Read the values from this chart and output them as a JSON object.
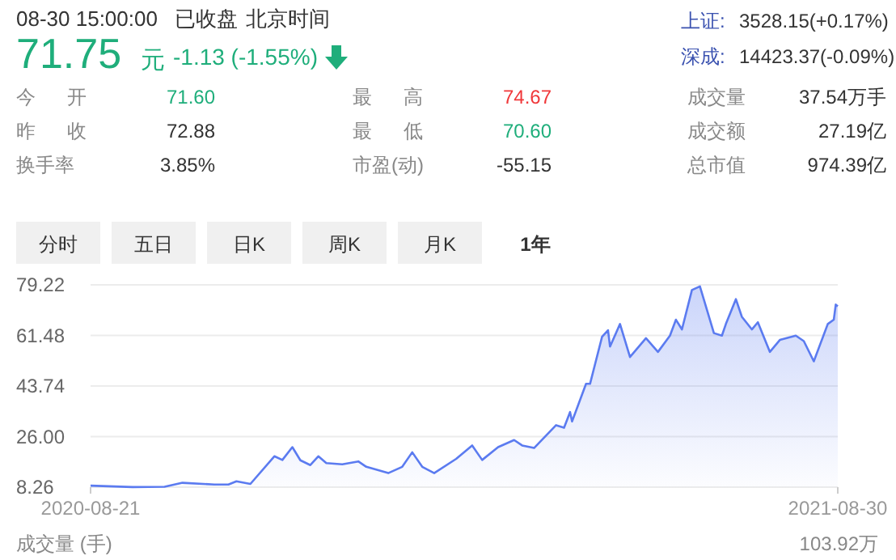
{
  "chart_data": [
    {
      "type": "other",
      "annotations": [
        "08-30 15:00:00",
        "已收盘",
        "北京时间",
        "71.75",
        "元",
        "-1.13 (-1.55%)",
        "上证:",
        "3528.15(+0.17%)",
        "深成:",
        "14423.37(-0.09%)",
        "今 开",
        "71.60",
        "最 高",
        "74.67",
        "成交量",
        "37.54万手",
        "昨 收",
        "72.88",
        "最 低",
        "70.60",
        "成交额",
        "27.19亿",
        "换手率",
        "3.85%",
        "市盈(动)",
        "-55.15",
        "总市值",
        "974.39亿",
        "分时",
        "五日",
        "日K",
        "周K",
        "月K",
        "1年"
      ]
    },
    {
      "type": "area",
      "x": [
        "2020-08-21",
        "2020-09-11",
        "2020-09-27",
        "2020-10-06",
        "2020-10-22",
        "2020-10-29",
        "2020-11-02",
        "2020-11-09",
        "2020-11-21",
        "2020-11-25",
        "2020-11-30",
        "2020-12-04",
        "2020-12-09",
        "2020-12-13",
        "2020-12-17",
        "2020-12-25",
        "2021-01-02",
        "2021-01-06",
        "2021-01-17",
        "2021-01-24",
        "2021-01-29",
        "2021-02-03",
        "2021-02-09",
        "2021-02-20",
        "2021-02-28",
        "2021-03-05",
        "2021-03-13",
        "2021-03-21",
        "2021-03-25",
        "2021-03-31",
        "2021-04-11",
        "2021-04-15",
        "2021-04-18",
        "2021-04-19",
        "2021-04-26",
        "2021-04-28",
        "2021-05-04",
        "2021-05-07",
        "2021-05-08",
        "2021-05-13",
        "2021-05-18",
        "2021-05-26",
        "2021-06-01",
        "2021-06-07",
        "2021-06-10",
        "2021-06-13",
        "2021-06-18",
        "2021-06-22",
        "2021-06-29",
        "2021-07-03",
        "2021-07-05",
        "2021-07-10",
        "2021-07-13",
        "2021-07-18",
        "2021-07-21",
        "2021-07-27",
        "2021-08-01",
        "2021-08-09",
        "2021-08-13",
        "2021-08-18",
        "2021-08-25",
        "2021-08-28",
        "2021-08-29",
        "2021-08-30"
      ],
      "series": [
        {
          "color": "#5b7bf0",
          "values": [
            8.8,
            8.3,
            8.4,
            9.8,
            9.2,
            9.2,
            10.3,
            9.4,
            19.1,
            17.8,
            22.3,
            17.7,
            16.0,
            19.1,
            16.7,
            16.3,
            17.3,
            15.4,
            13.2,
            15.4,
            20.5,
            15.4,
            13.2,
            18.2,
            22.9,
            17.8,
            22.3,
            24.8,
            22.9,
            22.0,
            30.0,
            29.1,
            34.6,
            31.3,
            44.5,
            44.5,
            61.0,
            63.3,
            57.6,
            65.5,
            53.9,
            60.5,
            55.7,
            61.4,
            67.0,
            63.6,
            77.4,
            78.7,
            62.3,
            61.4,
            65.5,
            74.2,
            68.0,
            63.6,
            66.1,
            55.7,
            59.9,
            61.4,
            59.5,
            52.4,
            65.5,
            67.0,
            72.3,
            71.7
          ]
        }
      ],
      "xlim": [
        "2020-08-21",
        "2021-08-30"
      ],
      "xticks": [
        "2020-08-21",
        "2021-08-30"
      ],
      "ylim": [
        8.26,
        79.22
      ],
      "yticks": [
        8.26,
        {
          "value": 26,
          "label": "26.00"
        },
        43.74,
        61.48,
        79.22
      ],
      "grid": "y",
      "annotations": [
        "成交量 (手)",
        "103.92万"
      ]
    }
  ]
}
